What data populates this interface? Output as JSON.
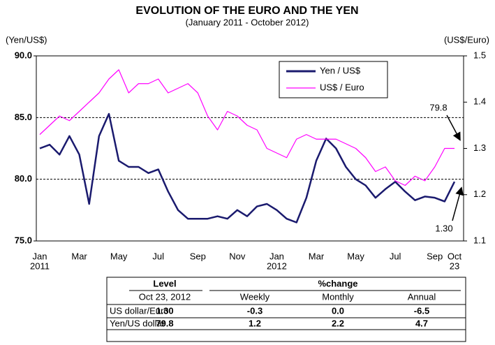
{
  "chart_data": {
    "type": "line",
    "title": "EVOLUTION OF THE EURO AND THE YEN",
    "subtitle": "(January  2011 - October 2012)",
    "y_label": "(Yen/US$)",
    "y2_label": "(US$/Euro)",
    "categories": [
      "Jan",
      null,
      null,
      null,
      "Mar",
      null,
      null,
      null,
      "May",
      null,
      null,
      null,
      "Jul",
      null,
      null,
      null,
      "Sep",
      null,
      null,
      null,
      "Nov",
      null,
      null,
      null,
      "Jan",
      null,
      null,
      null,
      "Mar",
      null,
      null,
      null,
      "May",
      null,
      null,
      null,
      "Jul",
      null,
      null,
      null,
      "Sep",
      null,
      "Oct"
    ],
    "category_sublabels": [
      {
        "index": 0,
        "label": "2011"
      },
      {
        "index": 24,
        "label": "2012"
      },
      {
        "index": 42,
        "label": "23"
      }
    ],
    "ylim": [
      75,
      90
    ],
    "yticks": [
      {
        "value": 75,
        "label": "75.0"
      },
      {
        "value": 80,
        "label": "80.0"
      },
      {
        "value": 85,
        "label": "85.0"
      },
      {
        "value": 90,
        "label": "90.0"
      }
    ],
    "y2lim": [
      1.1,
      1.5
    ],
    "y2ticks": [
      1.1,
      1.2,
      1.3,
      1.4,
      1.5
    ],
    "grid": true,
    "series": [
      {
        "name": "Yen / US$",
        "color": "#1a1a6e",
        "values": [
          82.5,
          82.8,
          82,
          83.5,
          82,
          78,
          83.5,
          85.3,
          81.5,
          81,
          81,
          80.5,
          80.8,
          79,
          77.5,
          76.8,
          76.8,
          76.8,
          77,
          76.8,
          77.5,
          77,
          77.8,
          78,
          77.5,
          76.8,
          76.5,
          78.5,
          81.5,
          83.3,
          82.5,
          81,
          80,
          79.5,
          78.5,
          79.2,
          79.8,
          79,
          78.3,
          78.6,
          78.5,
          78.2,
          79.8
        ]
      },
      {
        "name": "US$ / Euro",
        "color": "#ff00ff",
        "axis": "y2",
        "values": [
          1.33,
          1.35,
          1.37,
          1.36,
          1.38,
          1.4,
          1.42,
          1.45,
          1.47,
          1.42,
          1.44,
          1.44,
          1.45,
          1.42,
          1.43,
          1.44,
          1.42,
          1.37,
          1.34,
          1.38,
          1.37,
          1.35,
          1.34,
          1.3,
          1.29,
          1.28,
          1.32,
          1.33,
          1.32,
          1.32,
          1.32,
          1.31,
          1.3,
          1.28,
          1.25,
          1.26,
          1.23,
          1.22,
          1.24,
          1.23,
          1.26,
          1.3,
          1.3
        ]
      }
    ],
    "annotations": [
      {
        "text": "79.8",
        "index": 42,
        "series": 0
      },
      {
        "text": "1.30",
        "index": 42,
        "series": 1
      }
    ]
  },
  "table": {
    "header": [
      "Level",
      "%change"
    ],
    "subheader": [
      "Oct 23, 2012",
      "Weekly",
      "Monthly",
      "Annual"
    ],
    "rows": [
      [
        "US dollar/Euro",
        "1.30",
        "-0.3",
        "0.0",
        "-6.5"
      ],
      [
        "Yen/US dollar",
        "79.8",
        "1.2",
        "2.2",
        "4.7"
      ]
    ]
  }
}
